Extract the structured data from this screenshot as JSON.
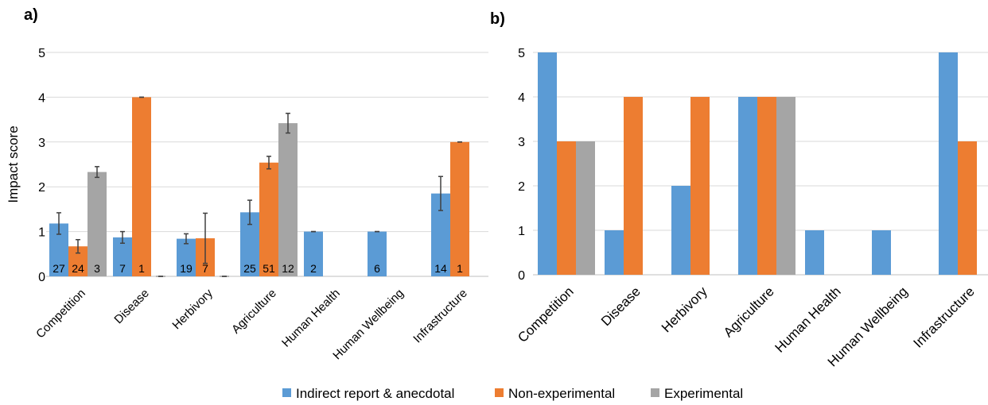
{
  "legend": {
    "items": [
      {
        "label": "Indirect report & anecdotal",
        "color": "#5b9bd5"
      },
      {
        "label": "Non-experimental",
        "color": "#ed7d31"
      },
      {
        "label": "Experimental",
        "color": "#a5a5a5"
      }
    ]
  },
  "chart_data": [
    {
      "panel": "a)",
      "type": "bar",
      "ylabel": "Impact score",
      "ylim": [
        0,
        5
      ],
      "yticks": [
        0,
        1,
        2,
        3,
        4,
        5
      ],
      "grid": true,
      "categories": [
        "Competition",
        "Disease",
        "Herbivory",
        "Agriculture",
        "Human Health",
        "Human Wellbeing",
        "Infrastructure"
      ],
      "series": [
        {
          "name": "Indirect report & anecdotal",
          "color": "#5b9bd5",
          "values": [
            1.18,
            0.87,
            0.84,
            1.43,
            1.0,
            1.0,
            1.85
          ],
          "errors": [
            0.24,
            0.13,
            0.11,
            0.27,
            0.0,
            0.0,
            0.38
          ],
          "n": [
            "27",
            "7",
            "19",
            "25",
            "2",
            "6",
            "14"
          ]
        },
        {
          "name": "Non-experimental",
          "color": "#ed7d31",
          "values": [
            0.67,
            4.0,
            0.85,
            2.54,
            null,
            null,
            3.0
          ],
          "errors": [
            0.15,
            0.0,
            0.56,
            0.14,
            null,
            null,
            0.0
          ],
          "n": [
            "24",
            "1",
            "7",
            "51",
            "",
            "",
            "1"
          ]
        },
        {
          "name": "Experimental",
          "color": "#a5a5a5",
          "values": [
            2.33,
            0.0,
            0.0,
            3.42,
            null,
            null,
            null
          ],
          "errors": [
            0.12,
            0.0,
            0.0,
            0.22,
            null,
            null,
            null
          ],
          "n": [
            "3",
            "",
            "",
            "12",
            "",
            "",
            ""
          ]
        }
      ]
    },
    {
      "panel": "b)",
      "type": "bar",
      "ylabel": "",
      "ylim": [
        0,
        5
      ],
      "yticks": [
        0,
        1,
        2,
        3,
        4,
        5
      ],
      "grid": true,
      "categories": [
        "Competition",
        "Disease",
        "Herbivory",
        "Agriculture",
        "Human Health",
        "Human Wellbeing",
        "Infrastructure"
      ],
      "series": [
        {
          "name": "Indirect report & anecdotal",
          "color": "#5b9bd5",
          "values": [
            5,
            1,
            2,
            4,
            1,
            1,
            5
          ]
        },
        {
          "name": "Non-experimental",
          "color": "#ed7d31",
          "values": [
            3,
            4,
            4,
            4,
            null,
            null,
            3
          ]
        },
        {
          "name": "Experimental",
          "color": "#a5a5a5",
          "values": [
            3,
            null,
            null,
            4,
            null,
            null,
            null
          ]
        }
      ]
    }
  ]
}
